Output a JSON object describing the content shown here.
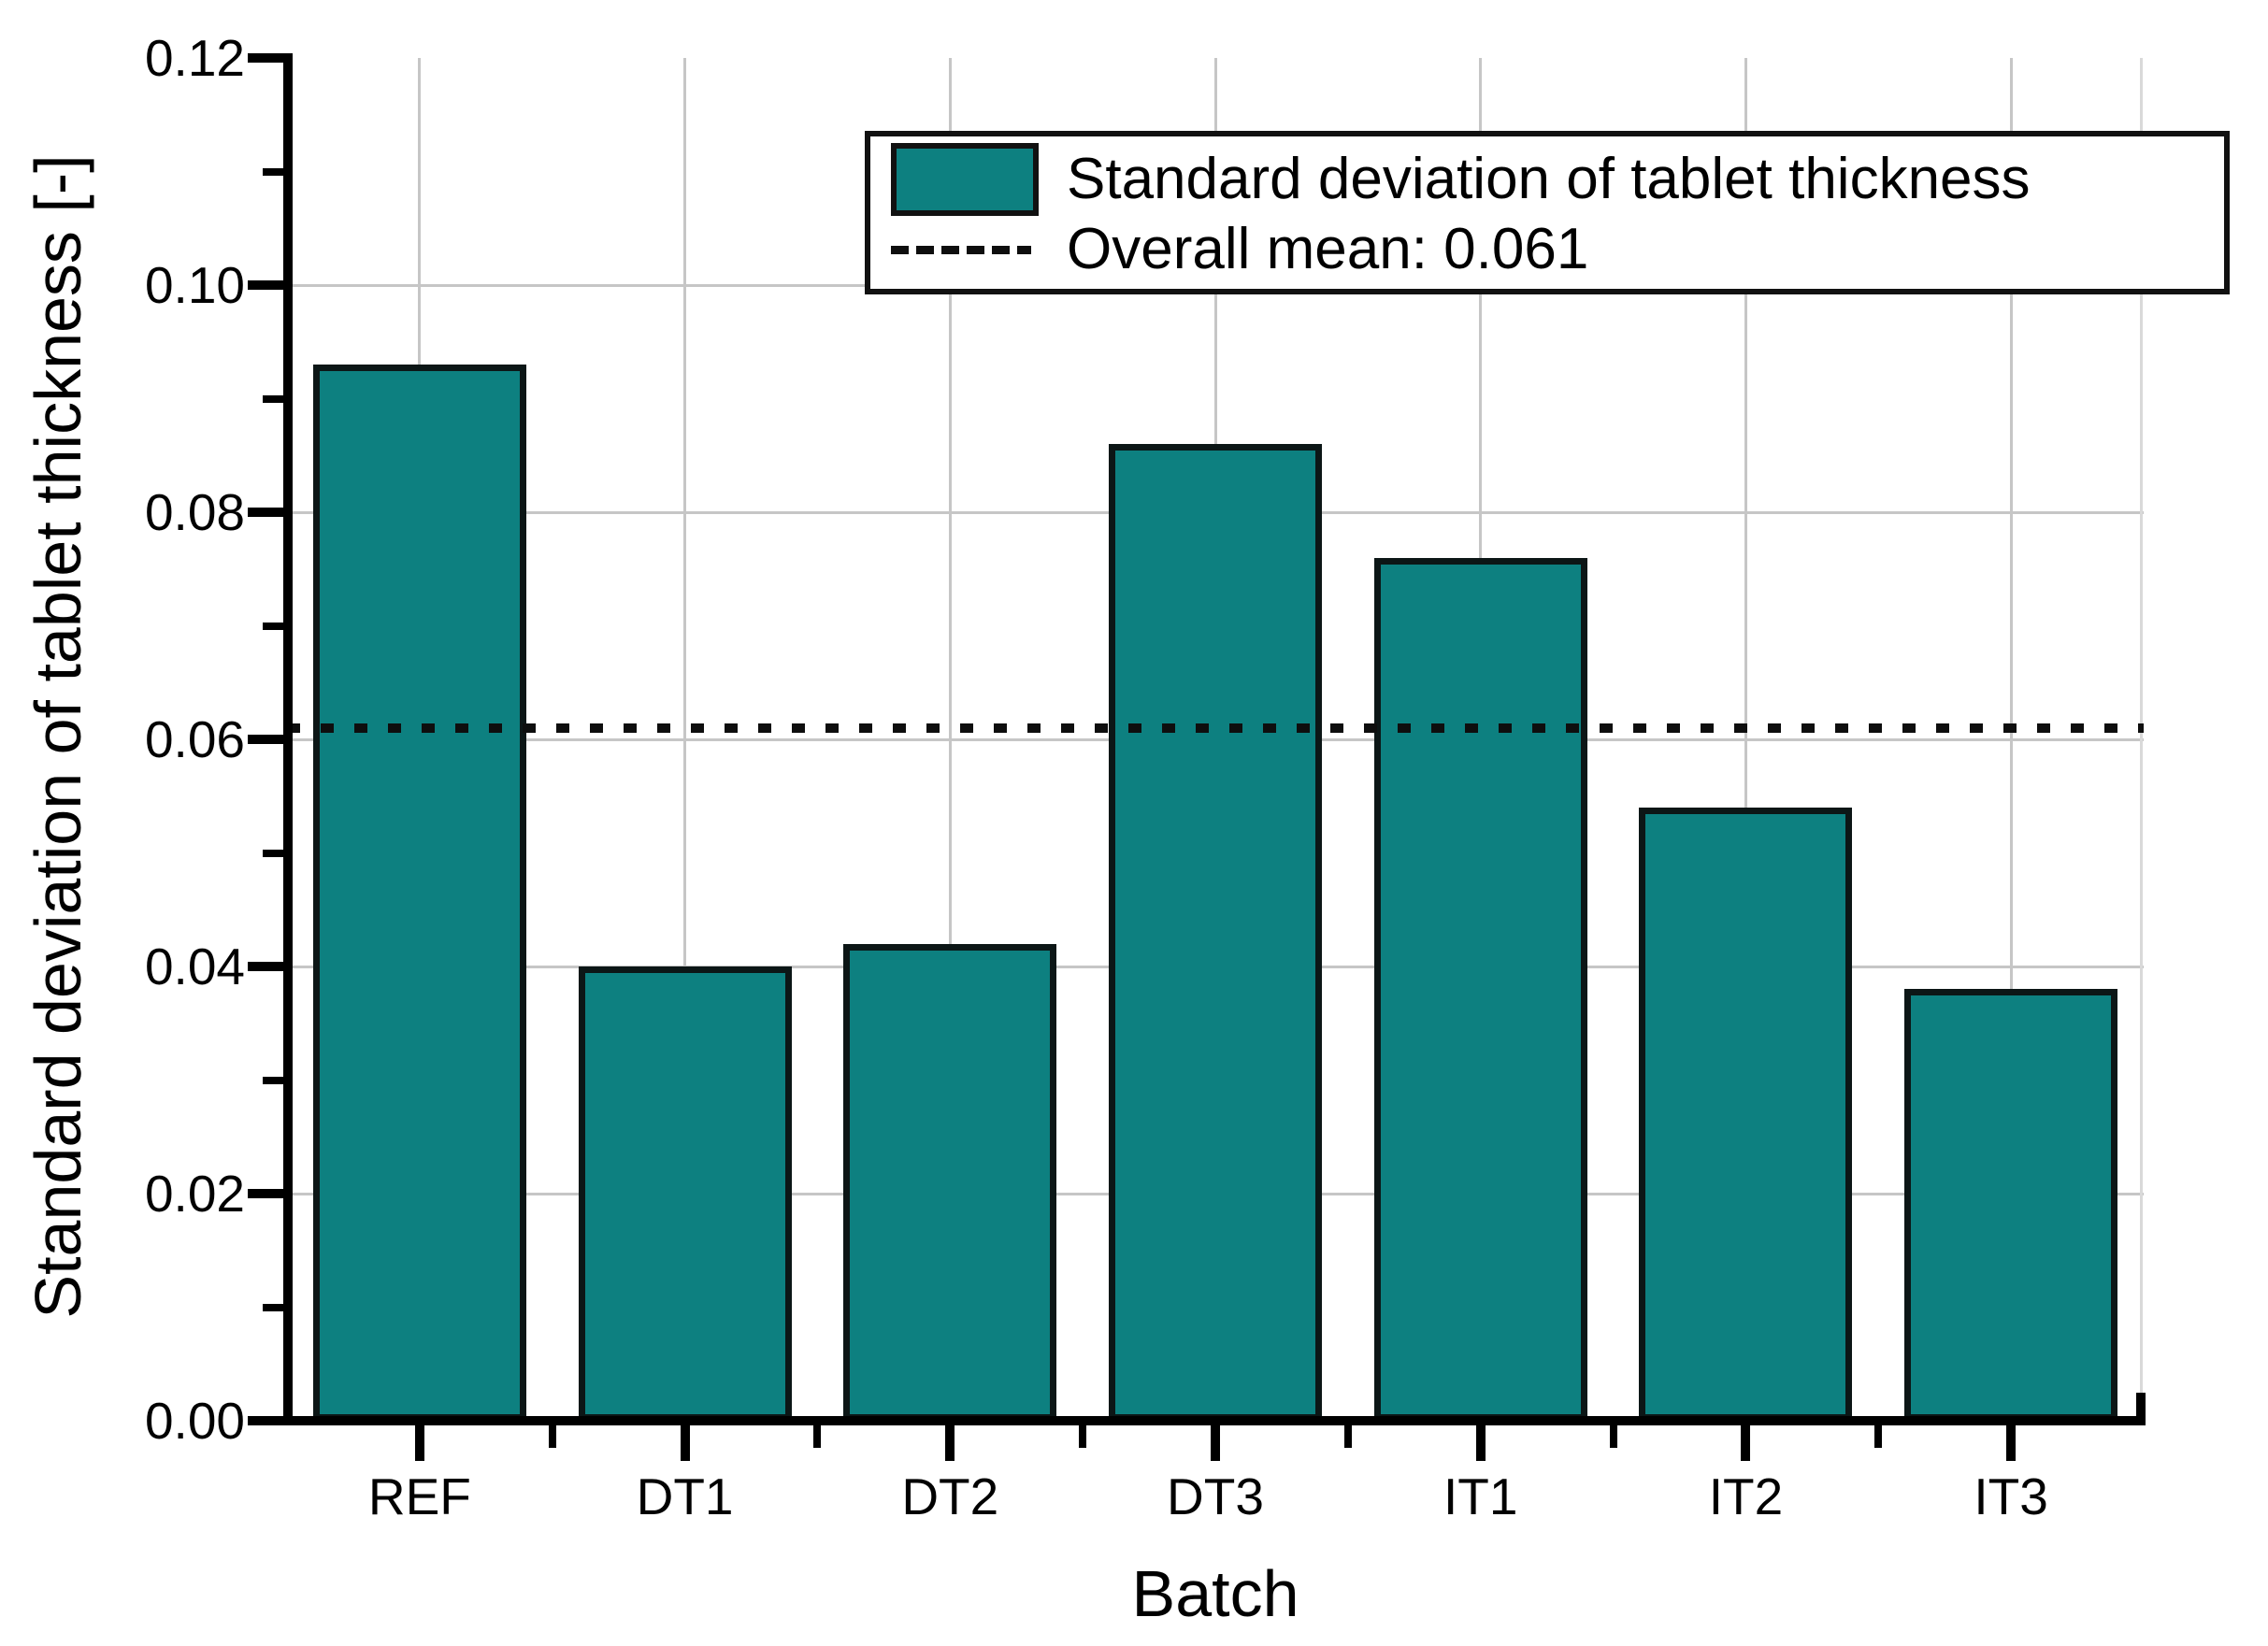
{
  "figure": {
    "ylabel": "Standard deviation of tablet thickness [-]",
    "xlabel": "Batch",
    "legend": {
      "series_label": "Standard deviation of tablet thickness",
      "mean_label": "Overall mean: 0.061"
    },
    "colors": {
      "bar_fill": "#0D8080",
      "bar_border": "#0c1616",
      "grid": "#c6c6c6",
      "axis": "#000000",
      "mean_line": "#0e0e0e",
      "background": "#ffffff"
    }
  },
  "chart_data": {
    "type": "bar",
    "categories": [
      "REF",
      "DT1",
      "DT2",
      "DT3",
      "IT1",
      "IT2",
      "IT3"
    ],
    "values": [
      0.093,
      0.04,
      0.042,
      0.086,
      0.076,
      0.054,
      0.038
    ],
    "title": "",
    "xlabel": "Batch",
    "ylabel": "Standard deviation of tablet thickness [-]",
    "ylim": [
      0,
      0.12
    ],
    "ytick_step": 0.02,
    "ytick_minor_step": 0.01,
    "ytick_labels": [
      "0.00",
      "0.02",
      "0.04",
      "0.06",
      "0.08",
      "0.10",
      "0.12"
    ],
    "overall_mean": 0.061,
    "grid": true,
    "legend_entries": [
      "Standard deviation of tablet thickness",
      "Overall mean: 0.061"
    ],
    "legend_position": "upper right"
  }
}
